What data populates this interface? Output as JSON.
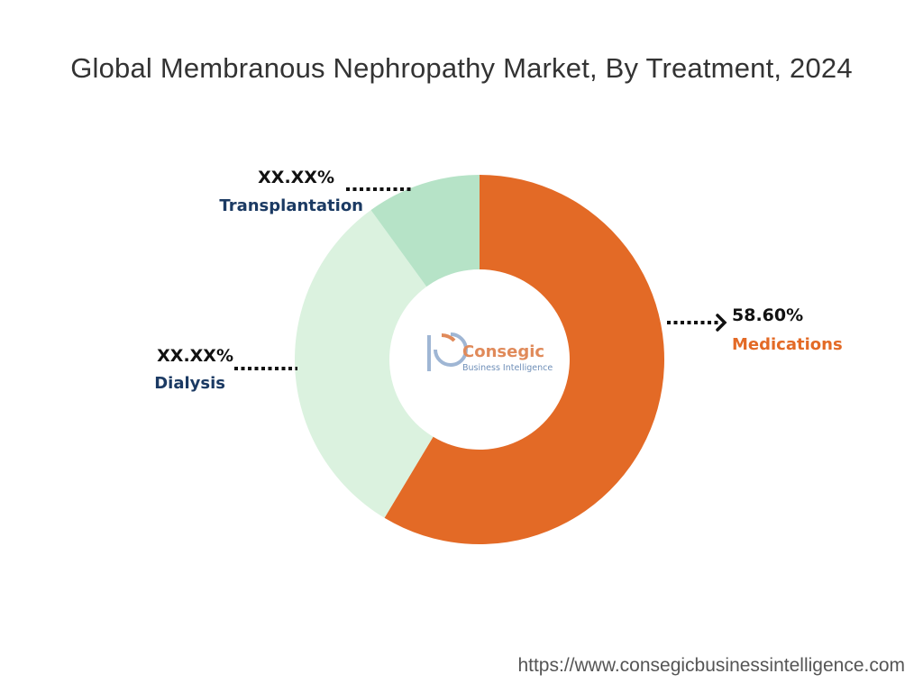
{
  "chart_data": {
    "type": "pie",
    "title": "Global Membranous Nephropathy Market, By Treatment, 2024",
    "slices": [
      {
        "name": "Medications",
        "value_label": "58.60%",
        "share": 0.586,
        "color": "#E36A26",
        "label_color": "#E36A26"
      },
      {
        "name": "Dialysis",
        "value_label": "XX.XX%",
        "share": 0.314,
        "color": "#DBF2DF",
        "label_color": "#1B3A63"
      },
      {
        "name": "Transplantation",
        "value_label": "XX.XX%",
        "share": 0.1,
        "color": "#B6E3C7",
        "label_color": "#1B3A63"
      }
    ],
    "donut": true
  },
  "logo": {
    "main": "Consegic",
    "sub": "Business Intelligence",
    "color_main": "#E08A5A",
    "color_sub": "#6F8FB8",
    "color_mark": "#9FB6D4"
  },
  "footer": {
    "url": "https://www.consegicbusinessintelligence.com"
  }
}
